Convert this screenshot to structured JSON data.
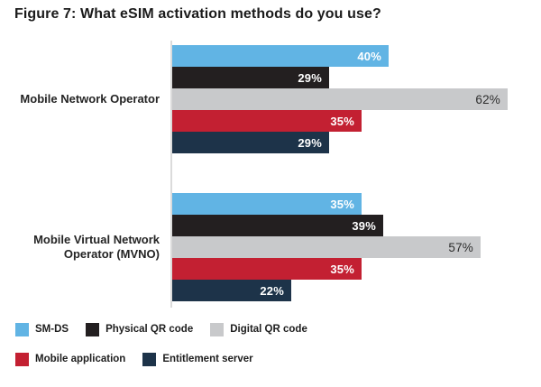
{
  "chart_data": {
    "type": "bar",
    "orientation": "horizontal",
    "title": "Figure 7: What eSIM activation methods do you use?",
    "categories": [
      "Mobile Network Operator",
      "Mobile Virtual Network Operator (MVNO)"
    ],
    "series": [
      {
        "name": "SM-DS",
        "color": "#61b4e4",
        "values": [
          40,
          35
        ],
        "label_style": "white"
      },
      {
        "name": "Physical QR code",
        "color": "#231f20",
        "values": [
          29,
          39
        ],
        "label_style": "white"
      },
      {
        "name": "Digital QR code",
        "color": "#c8c9cb",
        "values": [
          62,
          57
        ],
        "label_style": "dark"
      },
      {
        "name": "Mobile application",
        "color": "#c32032",
        "values": [
          35,
          35
        ],
        "label_style": "white"
      },
      {
        "name": "Entitlement server",
        "color": "#1d3349",
        "values": [
          29,
          22
        ],
        "label_style": "white"
      }
    ],
    "value_suffix": "%",
    "data_labels": [
      "40%",
      "29%",
      "62%",
      "35%",
      "29%",
      "35%",
      "39%",
      "57%",
      "35%",
      "22%"
    ],
    "xlim": [
      0,
      65
    ],
    "grid": false,
    "legend_position": "bottom-left",
    "axis_line_color": "#dbdbdb",
    "background_color": "#ffffff"
  },
  "legend": {
    "rows": [
      [
        0,
        1,
        2
      ],
      [
        3,
        4
      ]
    ]
  }
}
